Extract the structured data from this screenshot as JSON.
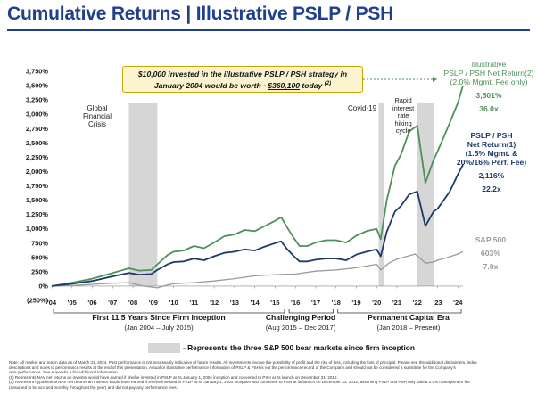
{
  "page": {
    "title": "Cumulative Returns | Illustrative PSLP / PSH"
  },
  "callout": {
    "amount1": "$10,000",
    "text1": " invested in the illustrative PSLP / PSH strategy in",
    "text2a": "January 2004 would be worth ~",
    "amount2": "$360,100",
    "text2b": " today",
    "note": "(2)"
  },
  "annotations": {
    "gfc": [
      "Global",
      "Financial",
      "Crisis"
    ],
    "covid": "Covid-19",
    "rate": [
      "Rapid",
      "interest",
      "rate",
      "hiking",
      "cycle"
    ]
  },
  "series_labels": {
    "illustrative": {
      "lines": [
        "Illustrative",
        "PSLP / PSH Net Return(2)",
        "(2.0% Mgmt. Fee only)"
      ],
      "pct": "3,501%",
      "multiple": "36.0x",
      "color": "#4f8f5a"
    },
    "net": {
      "lines": [
        "PSLP / PSH",
        "Net Return(1)",
        "(1.5% Mgmt. &",
        "20%/16% Perf. Fee)"
      ],
      "pct": "2,116%",
      "multiple": "22.2x",
      "color": "#1b3a6b"
    },
    "sp": {
      "lines": [
        "S&P 500"
      ],
      "pct": "603%",
      "multiple": "7.0x",
      "color": "#9a9a9a"
    }
  },
  "periods": [
    {
      "name": "First 11.5 Years Since Firm Inception",
      "range": "(Jan 2004 – July 2015)"
    },
    {
      "name": "Challenging Period",
      "range": "(Aug 2015 – Dec 2017)"
    },
    {
      "name": "Permanent Capital Era",
      "range": "(Jan 2018 – Present)"
    }
  ],
  "legend": {
    "bear_text": "- Represents the three S&P 500 bear markets since firm inception"
  },
  "footnotes": [
    "Note: All market and return data as of March 31, 2024. Past performance is not necessarily indicative of future results. All investments involve the possibility of profit and the risk of loss, including the loss of principal. Please see the additional disclaimers, index",
    "descriptions and notes to performance results at the end of this presentation. Actual or illustrative performance information of PSLP & PSH is not the performance record of the Company and should not be considered a substitute for the Company's",
    "own performance. See Appendix A for additional information.",
    "(1)      Represents NAV net returns an investor would have earned if she/he invested in PSLP at its January 1, 2004 inception and converted to PSH at its launch on December 31, 2012.",
    "(2)      Represent hypothetical NAV net returns an investor would have earned if she/he invested in PSLP at its January 1, 2004 inception and converted to PSH at its launch on December 31, 2012, assuming PSLP and PSH only paid a 2.0% management fee",
    "          (assumed to be accrued monthly throughout the year) and did not pay any performance fees."
  ],
  "chart_data": {
    "type": "line",
    "title": "Cumulative Returns | Illustrative PSLP / PSH",
    "xlabel": "",
    "ylabel": "",
    "xlim": [
      2004,
      2024.25
    ],
    "ylim": [
      -250,
      3750
    ],
    "y_ticks": [
      -250,
      0,
      250,
      500,
      750,
      1000,
      1250,
      1500,
      1750,
      2000,
      2250,
      2500,
      2750,
      3000,
      3250,
      3500,
      3750
    ],
    "y_tick_labels": [
      "(250%)",
      "0%",
      "250%",
      "500%",
      "750%",
      "1,000%",
      "1,250%",
      "1,500%",
      "1,750%",
      "2,000%",
      "2,250%",
      "2,500%",
      "2,750%",
      "3,000%",
      "3,250%",
      "3,500%",
      "3,750%"
    ],
    "x_ticks": [
      2004,
      2005,
      2006,
      2007,
      2008,
      2009,
      2010,
      2011,
      2012,
      2013,
      2014,
      2015,
      2016,
      2017,
      2018,
      2019,
      2020,
      2021,
      2022,
      2023,
      2024
    ],
    "x_tick_labels": [
      "'04",
      "'05",
      "'06",
      "'07",
      "'08",
      "'09",
      "'10",
      "'11",
      "'12",
      "'13",
      "'14",
      "'15",
      "'16",
      "'17",
      "'18",
      "'19",
      "'20",
      "'21",
      "'22",
      "'23",
      "'24"
    ],
    "grid": false,
    "bear_markets": [
      [
        2007.8,
        2009.2
      ],
      [
        2020.1,
        2020.35
      ],
      [
        2022.0,
        2022.8
      ]
    ],
    "series": [
      {
        "name": "Illustrative PSLP / PSH Net Return",
        "color": "#4f8f5a",
        "x": [
          2004,
          2005,
          2006,
          2007,
          2007.8,
          2008.3,
          2008.9,
          2009.2,
          2009.7,
          2010,
          2010.5,
          2011,
          2011.5,
          2012,
          2012.5,
          2013,
          2013.5,
          2014,
          2014.5,
          2015,
          2015.3,
          2015.6,
          2015.9,
          2016.2,
          2016.6,
          2017,
          2017.5,
          2018,
          2018.5,
          2019,
          2019.5,
          2020,
          2020.2,
          2020.5,
          2020.9,
          2021.2,
          2021.6,
          2022,
          2022.4,
          2022.8,
          2023,
          2023.3,
          2023.6,
          2024,
          2024.25
        ],
        "y": [
          0,
          60,
          130,
          230,
          310,
          270,
          280,
          380,
          540,
          600,
          620,
          700,
          660,
          760,
          870,
          900,
          980,
          960,
          1050,
          1140,
          1200,
          1020,
          850,
          700,
          700,
          760,
          800,
          800,
          760,
          880,
          960,
          1000,
          820,
          1500,
          2100,
          2300,
          2700,
          2800,
          1800,
          2200,
          2350,
          2600,
          2850,
          3200,
          3501
        ]
      },
      {
        "name": "PSLP / PSH Net Return",
        "color": "#1b3a6b",
        "x": [
          2004,
          2005,
          2006,
          2007,
          2007.8,
          2008.3,
          2008.9,
          2009.2,
          2009.7,
          2010,
          2010.5,
          2011,
          2011.5,
          2012,
          2012.5,
          2013,
          2013.5,
          2014,
          2014.5,
          2015,
          2015.3,
          2015.6,
          2015.9,
          2016.2,
          2016.6,
          2017,
          2017.5,
          2018,
          2018.5,
          2019,
          2019.5,
          2020,
          2020.2,
          2020.5,
          2020.9,
          2021.2,
          2021.6,
          2022,
          2022.4,
          2022.8,
          2023,
          2023.3,
          2023.6,
          2024,
          2024.25
        ],
        "y": [
          0,
          40,
          90,
          170,
          230,
          200,
          210,
          280,
          380,
          420,
          430,
          480,
          450,
          520,
          580,
          600,
          640,
          620,
          690,
          750,
          780,
          640,
          530,
          430,
          430,
          460,
          480,
          480,
          450,
          550,
          600,
          640,
          520,
          950,
          1300,
          1400,
          1600,
          1650,
          1050,
          1300,
          1350,
          1500,
          1650,
          1950,
          2116
        ]
      },
      {
        "name": "S&P 500",
        "color": "#9a9a9a",
        "x": [
          2004,
          2005,
          2006,
          2007,
          2007.8,
          2008.5,
          2009.2,
          2009.7,
          2010,
          2011,
          2012,
          2013,
          2014,
          2015,
          2016,
          2017,
          2018,
          2019,
          2020,
          2020.2,
          2020.6,
          2021,
          2021.9,
          2022.4,
          2022.8,
          2023,
          2023.5,
          2024,
          2024.25
        ],
        "y": [
          0,
          10,
          30,
          50,
          60,
          0,
          -30,
          20,
          40,
          60,
          90,
          130,
          180,
          200,
          210,
          260,
          280,
          320,
          380,
          280,
          400,
          470,
          560,
          400,
          420,
          450,
          500,
          560,
          603
        ]
      }
    ]
  }
}
